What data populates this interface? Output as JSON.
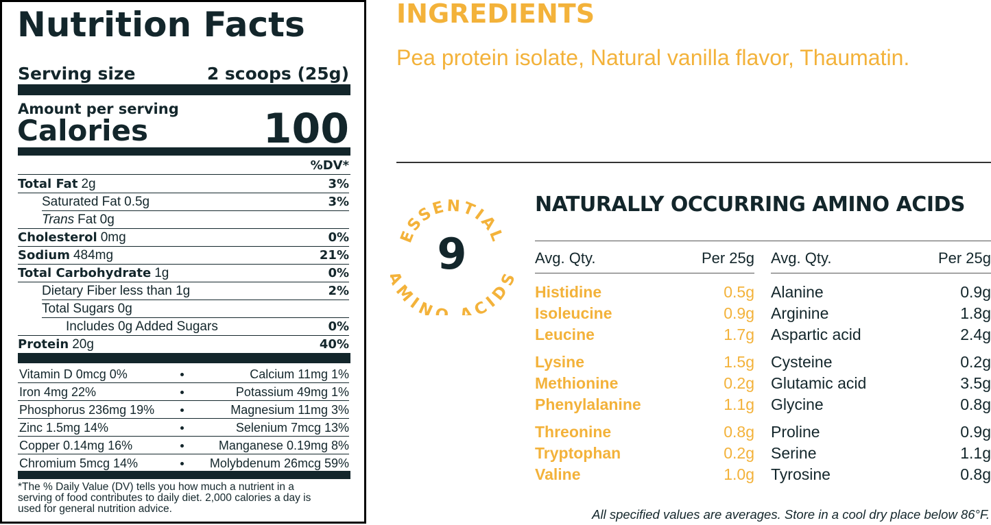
{
  "nutrition_facts": {
    "title": "Nutrition Facts",
    "serving": {
      "label": "Serving size",
      "value": "2 scoops (25g)"
    },
    "amount_per_serving": "Amount per serving",
    "calories": {
      "label": "Calories",
      "value": "100"
    },
    "dv_header": "%DV*",
    "rows": [
      {
        "name": "Total Fat",
        "amount": "2g",
        "dv": "3%"
      },
      {
        "name": "Saturated Fat",
        "amount": "0.5g",
        "dv": "3%"
      },
      {
        "name_italic": "Trans",
        "name": "Fat",
        "amount": "0g"
      },
      {
        "name": "Cholesterol",
        "amount": "0mg",
        "dv": "0%"
      },
      {
        "name": "Sodium",
        "amount": "484mg",
        "dv": "21%"
      },
      {
        "name": "Total Carbohydrate",
        "amount": "1g",
        "dv": "0%"
      },
      {
        "name": "Dietary Fiber",
        "amount": "less than 1g",
        "dv": "2%"
      },
      {
        "name": "Total Sugars",
        "amount": "0g"
      },
      {
        "name": "Includes 0g Added Sugars",
        "dv": "0%"
      },
      {
        "name": "Protein",
        "amount": "20g",
        "dv": "40%"
      }
    ],
    "micronutrients": [
      [
        "Vitamin D 0mcg 0%",
        "Calcium 11mg 1%"
      ],
      [
        "Iron 4mg 22%",
        "Potassium 49mg 1%"
      ],
      [
        "Phosphorus 236mg 19%",
        "Magnesium 11mg 3%"
      ],
      [
        "Zinc 1.5mg 14%",
        "Selenium 7mcg 13%"
      ],
      [
        "Copper 0.14mg 16%",
        "Manganese 0.19mg 8%"
      ],
      [
        "Chromium 5mcg 14%",
        "Molybdenum 26mcg 59%"
      ]
    ],
    "footnote": "*The % Daily Value (DV) tells you how much a nutrient in a serving of food contributes to daily diet. 2,000 calories a day is used for general nutrition advice."
  },
  "ingredients": {
    "title": "INGREDIENTS",
    "text": "Pea protein isolate, Natural vanilla flavor, Thaumatin."
  },
  "amino_acids": {
    "badge": {
      "top": "ESSENTIAL",
      "number": "9",
      "bottom": "AMINO ACIDS"
    },
    "title": "NATURALLY OCCURRING AMINO ACIDS",
    "columns": [
      {
        "header": [
          "Avg. Qty.",
          "Per 25g"
        ],
        "rows": [
          [
            "Histidine",
            "0.5g"
          ],
          [
            "Isoleucine",
            "0.9g"
          ],
          [
            "Leucine",
            "1.7g"
          ],
          [
            "Lysine",
            "1.5g"
          ],
          [
            "Methionine",
            "0.2g"
          ],
          [
            "Phenylalanine",
            "1.1g"
          ],
          [
            "Threonine",
            "0.8g"
          ],
          [
            "Tryptophan",
            "0.2g"
          ],
          [
            "Valine",
            "1.0g"
          ]
        ]
      },
      {
        "header": [
          "Avg. Qty.",
          "Per 25g"
        ],
        "rows": [
          [
            "Alanine",
            "0.9g"
          ],
          [
            "Arginine",
            "1.8g"
          ],
          [
            "Aspartic acid",
            "2.4g"
          ],
          [
            "Cysteine",
            "0.2g"
          ],
          [
            "Glutamic acid",
            "3.5g"
          ],
          [
            "Glycine",
            "0.8g"
          ],
          [
            "Proline",
            "0.9g"
          ],
          [
            "Serine",
            "1.1g"
          ],
          [
            "Tyrosine",
            "0.8g"
          ]
        ]
      }
    ]
  },
  "footer": {
    "italic": "All specified values are averages.",
    "text": "Store in a cool dry place below 86°F."
  }
}
